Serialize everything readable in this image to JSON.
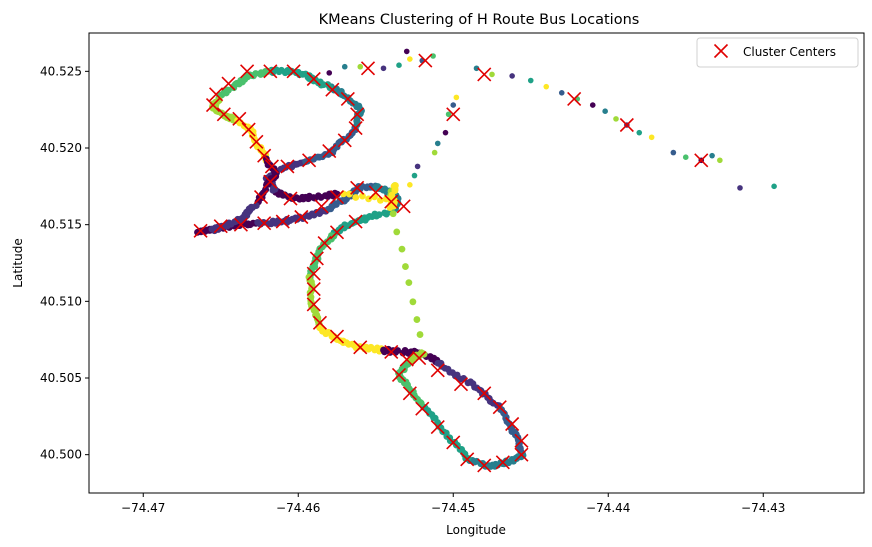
{
  "chart_data": {
    "type": "scatter",
    "title": "KMeans Clustering of H Route Bus Locations",
    "xlabel": "Longitude",
    "ylabel": "Latitude",
    "xlim": [
      -74.4735,
      -74.4235
    ],
    "ylim": [
      40.4975,
      40.5275
    ],
    "xticks": [
      -74.47,
      -74.46,
      -74.45,
      -74.44,
      -74.43
    ],
    "xtick_labels": [
      "−74.47",
      "−74.46",
      "−74.45",
      "−74.44",
      "−74.43"
    ],
    "yticks": [
      40.5,
      40.505,
      40.51,
      40.515,
      40.52,
      40.525
    ],
    "ytick_labels": [
      "40.500",
      "40.505",
      "40.510",
      "40.515",
      "40.520",
      "40.525"
    ],
    "grid": false,
    "legend": {
      "placement": "top-right",
      "entries": [
        "Cluster Centers"
      ]
    },
    "colors": {
      "center_marker": "#e00000",
      "palette": [
        "#440154",
        "#46337e",
        "#365c8d",
        "#277f8e",
        "#1fa187",
        "#4ac16d",
        "#a0da39",
        "#fde725"
      ]
    },
    "route_points": [
      [
        -74.4665,
        40.5145
      ],
      [
        -74.4655,
        40.5147
      ],
      [
        -74.464,
        40.515
      ],
      [
        -74.4625,
        40.5151
      ],
      [
        -74.461,
        40.5152
      ],
      [
        -74.4595,
        40.5155
      ],
      [
        -74.458,
        40.516
      ],
      [
        -74.457,
        40.5167
      ],
      [
        -74.456,
        40.5174
      ],
      [
        -74.455,
        40.5175
      ],
      [
        -74.454,
        40.5171
      ],
      [
        -74.4535,
        40.5165
      ],
      [
        -74.454,
        40.5158
      ],
      [
        -74.4555,
        40.5155
      ],
      [
        -74.4568,
        40.515
      ],
      [
        -74.4578,
        40.5143
      ],
      [
        -74.4585,
        40.5135
      ],
      [
        -74.459,
        40.5125
      ],
      [
        -74.4592,
        40.5115
      ],
      [
        -74.4592,
        40.5105
      ],
      [
        -74.459,
        40.5093
      ],
      [
        -74.4585,
        40.5082
      ],
      [
        -74.4575,
        40.5075
      ],
      [
        -74.456,
        40.507
      ],
      [
        -74.4545,
        40.5068
      ],
      [
        -74.453,
        40.5067
      ],
      [
        -74.452,
        40.5066
      ],
      [
        -74.451,
        40.506
      ],
      [
        -74.4495,
        40.505
      ],
      [
        -74.448,
        40.504
      ],
      [
        -74.447,
        40.503
      ],
      [
        -74.4462,
        40.5018
      ],
      [
        -74.4458,
        40.5008
      ],
      [
        -74.4455,
        40.5
      ],
      [
        -74.4465,
        40.4995
      ],
      [
        -74.4478,
        40.4992
      ],
      [
        -74.449,
        40.4997
      ],
      [
        -74.45,
        40.5008
      ],
      [
        -74.451,
        40.502
      ],
      [
        -74.452,
        40.5033
      ],
      [
        -74.453,
        40.5045
      ],
      [
        -74.4535,
        40.5053
      ],
      [
        -74.4528,
        40.5062
      ],
      [
        -74.452,
        40.5066
      ],
      [
        -74.454,
        40.5168
      ],
      [
        -74.4538,
        40.5176
      ],
      [
        -74.454,
        40.5162
      ],
      [
        -74.4538,
        40.5166
      ],
      [
        -74.4575,
        40.517
      ],
      [
        -74.459,
        40.5168
      ],
      [
        -74.4605,
        40.5167
      ],
      [
        -74.4615,
        40.5172
      ],
      [
        -74.462,
        40.518
      ],
      [
        -74.461,
        40.5187
      ],
      [
        -74.4595,
        40.5191
      ],
      [
        -74.458,
        40.5197
      ],
      [
        -74.457,
        40.5205
      ],
      [
        -74.4562,
        40.5215
      ],
      [
        -74.456,
        40.5225
      ],
      [
        -74.4568,
        40.5233
      ],
      [
        -74.458,
        40.524
      ],
      [
        -74.4592,
        40.5246
      ],
      [
        -74.4605,
        40.525
      ],
      [
        -74.462,
        40.525
      ],
      [
        -74.4632,
        40.5247
      ],
      [
        -74.4642,
        40.524
      ],
      [
        -74.4652,
        40.5232
      ],
      [
        -74.4655,
        40.5227
      ],
      [
        -74.4648,
        40.5221
      ],
      [
        -74.4638,
        40.5218
      ],
      [
        -74.463,
        40.521
      ],
      [
        -74.4625,
        40.52
      ],
      [
        -74.462,
        40.5192
      ],
      [
        -74.4615,
        40.5183
      ],
      [
        -74.462,
        40.5175
      ],
      [
        -74.4628,
        40.5163
      ],
      [
        -74.4635,
        40.5155
      ],
      [
        -74.4645,
        40.515
      ],
      [
        -74.4658,
        40.5146
      ]
    ],
    "outlier_points": [
      [
        -74.458,
        40.5249
      ],
      [
        -74.457,
        40.5253
      ],
      [
        -74.456,
        40.5253
      ],
      [
        -74.4545,
        40.5252
      ],
      [
        -74.4535,
        40.5254
      ],
      [
        -74.4528,
        40.5258
      ],
      [
        -74.452,
        40.5257
      ],
      [
        -74.4513,
        40.526
      ],
      [
        -74.453,
        40.5263
      ],
      [
        -74.4485,
        40.5252
      ],
      [
        -74.4475,
        40.5248
      ],
      [
        -74.4462,
        40.5247
      ],
      [
        -74.445,
        40.5244
      ],
      [
        -74.444,
        40.524
      ],
      [
        -74.443,
        40.5236
      ],
      [
        -74.442,
        40.5232
      ],
      [
        -74.441,
        40.5228
      ],
      [
        -74.4402,
        40.5224
      ],
      [
        -74.4395,
        40.5219
      ],
      [
        -74.4388,
        40.5215
      ],
      [
        -74.438,
        40.521
      ],
      [
        -74.4372,
        40.5207
      ],
      [
        -74.4358,
        40.5197
      ],
      [
        -74.435,
        40.5194
      ],
      [
        -74.434,
        40.5192
      ],
      [
        -74.4333,
        40.5195
      ],
      [
        -74.4328,
        40.5192
      ],
      [
        -74.4315,
        40.5174
      ],
      [
        -74.4293,
        40.5175
      ],
      [
        -74.4498,
        40.5233
      ],
      [
        -74.45,
        40.5228
      ],
      [
        -74.4503,
        40.5222
      ],
      [
        -74.4505,
        40.521
      ],
      [
        -74.451,
        40.5203
      ],
      [
        -74.4512,
        40.5197
      ],
      [
        -74.4523,
        40.5188
      ],
      [
        -74.4525,
        40.5182
      ],
      [
        -74.4528,
        40.5176
      ]
    ],
    "cluster_centers": [
      [
        -74.4663,
        40.5146
      ],
      [
        -74.465,
        40.5149
      ],
      [
        -74.4637,
        40.515
      ],
      [
        -74.4622,
        40.5151
      ],
      [
        -74.461,
        40.5152
      ],
      [
        -74.4598,
        40.5155
      ],
      [
        -74.4585,
        40.5162
      ],
      [
        -74.4575,
        40.5168
      ],
      [
        -74.4562,
        40.5174
      ],
      [
        -74.455,
        40.5171
      ],
      [
        -74.454,
        40.5165
      ],
      [
        -74.4532,
        40.5162
      ],
      [
        -74.4563,
        40.5152
      ],
      [
        -74.4575,
        40.5145
      ],
      [
        -74.4583,
        40.5138
      ],
      [
        -74.4588,
        40.5128
      ],
      [
        -74.459,
        40.5118
      ],
      [
        -74.459,
        40.5108
      ],
      [
        -74.459,
        40.5098
      ],
      [
        -74.4586,
        40.5086
      ],
      [
        -74.4575,
        40.5077
      ],
      [
        -74.456,
        40.507
      ],
      [
        -74.454,
        40.5067
      ],
      [
        -74.4522,
        40.5063
      ],
      [
        -74.451,
        40.5055
      ],
      [
        -74.4495,
        40.5046
      ],
      [
        -74.448,
        40.504
      ],
      [
        -74.447,
        40.5031
      ],
      [
        -74.4462,
        40.502
      ],
      [
        -74.4456,
        40.5009
      ],
      [
        -74.4456,
        40.5
      ],
      [
        -74.4468,
        40.4995
      ],
      [
        -74.448,
        40.4993
      ],
      [
        -74.4491,
        40.4997
      ],
      [
        -74.45,
        40.5008
      ],
      [
        -74.451,
        40.5018
      ],
      [
        -74.452,
        40.503
      ],
      [
        -74.4528,
        40.504
      ],
      [
        -74.4535,
        40.5052
      ],
      [
        -74.453,
        40.5062
      ],
      [
        -74.4605,
        40.5167
      ],
      [
        -74.4618,
        40.5178
      ],
      [
        -74.4607,
        40.5188
      ],
      [
        -74.4593,
        40.5192
      ],
      [
        -74.458,
        40.5198
      ],
      [
        -74.457,
        40.5205
      ],
      [
        -74.4563,
        40.5213
      ],
      [
        -74.4562,
        40.5222
      ],
      [
        -74.4568,
        40.5232
      ],
      [
        -74.4578,
        40.5238
      ],
      [
        -74.459,
        40.5245
      ],
      [
        -74.4603,
        40.525
      ],
      [
        -74.4618,
        40.525
      ],
      [
        -74.4633,
        40.525
      ],
      [
        -74.4645,
        40.5242
      ],
      [
        -74.4653,
        40.5235
      ],
      [
        -74.4655,
        40.5228
      ],
      [
        -74.4648,
        40.5222
      ],
      [
        -74.4638,
        40.5219
      ],
      [
        -74.4632,
        40.5212
      ],
      [
        -74.4627,
        40.5204
      ],
      [
        -74.4622,
        40.5195
      ],
      [
        -74.4617,
        40.5188
      ],
      [
        -74.4555,
        40.5252
      ],
      [
        -74.4518,
        40.5257
      ],
      [
        -74.448,
        40.5248
      ],
      [
        -74.4422,
        40.5232
      ],
      [
        -74.4388,
        40.5215
      ],
      [
        -74.434,
        40.5192
      ],
      [
        -74.45,
        40.5222
      ],
      [
        -74.4624,
        40.5168
      ]
    ]
  }
}
